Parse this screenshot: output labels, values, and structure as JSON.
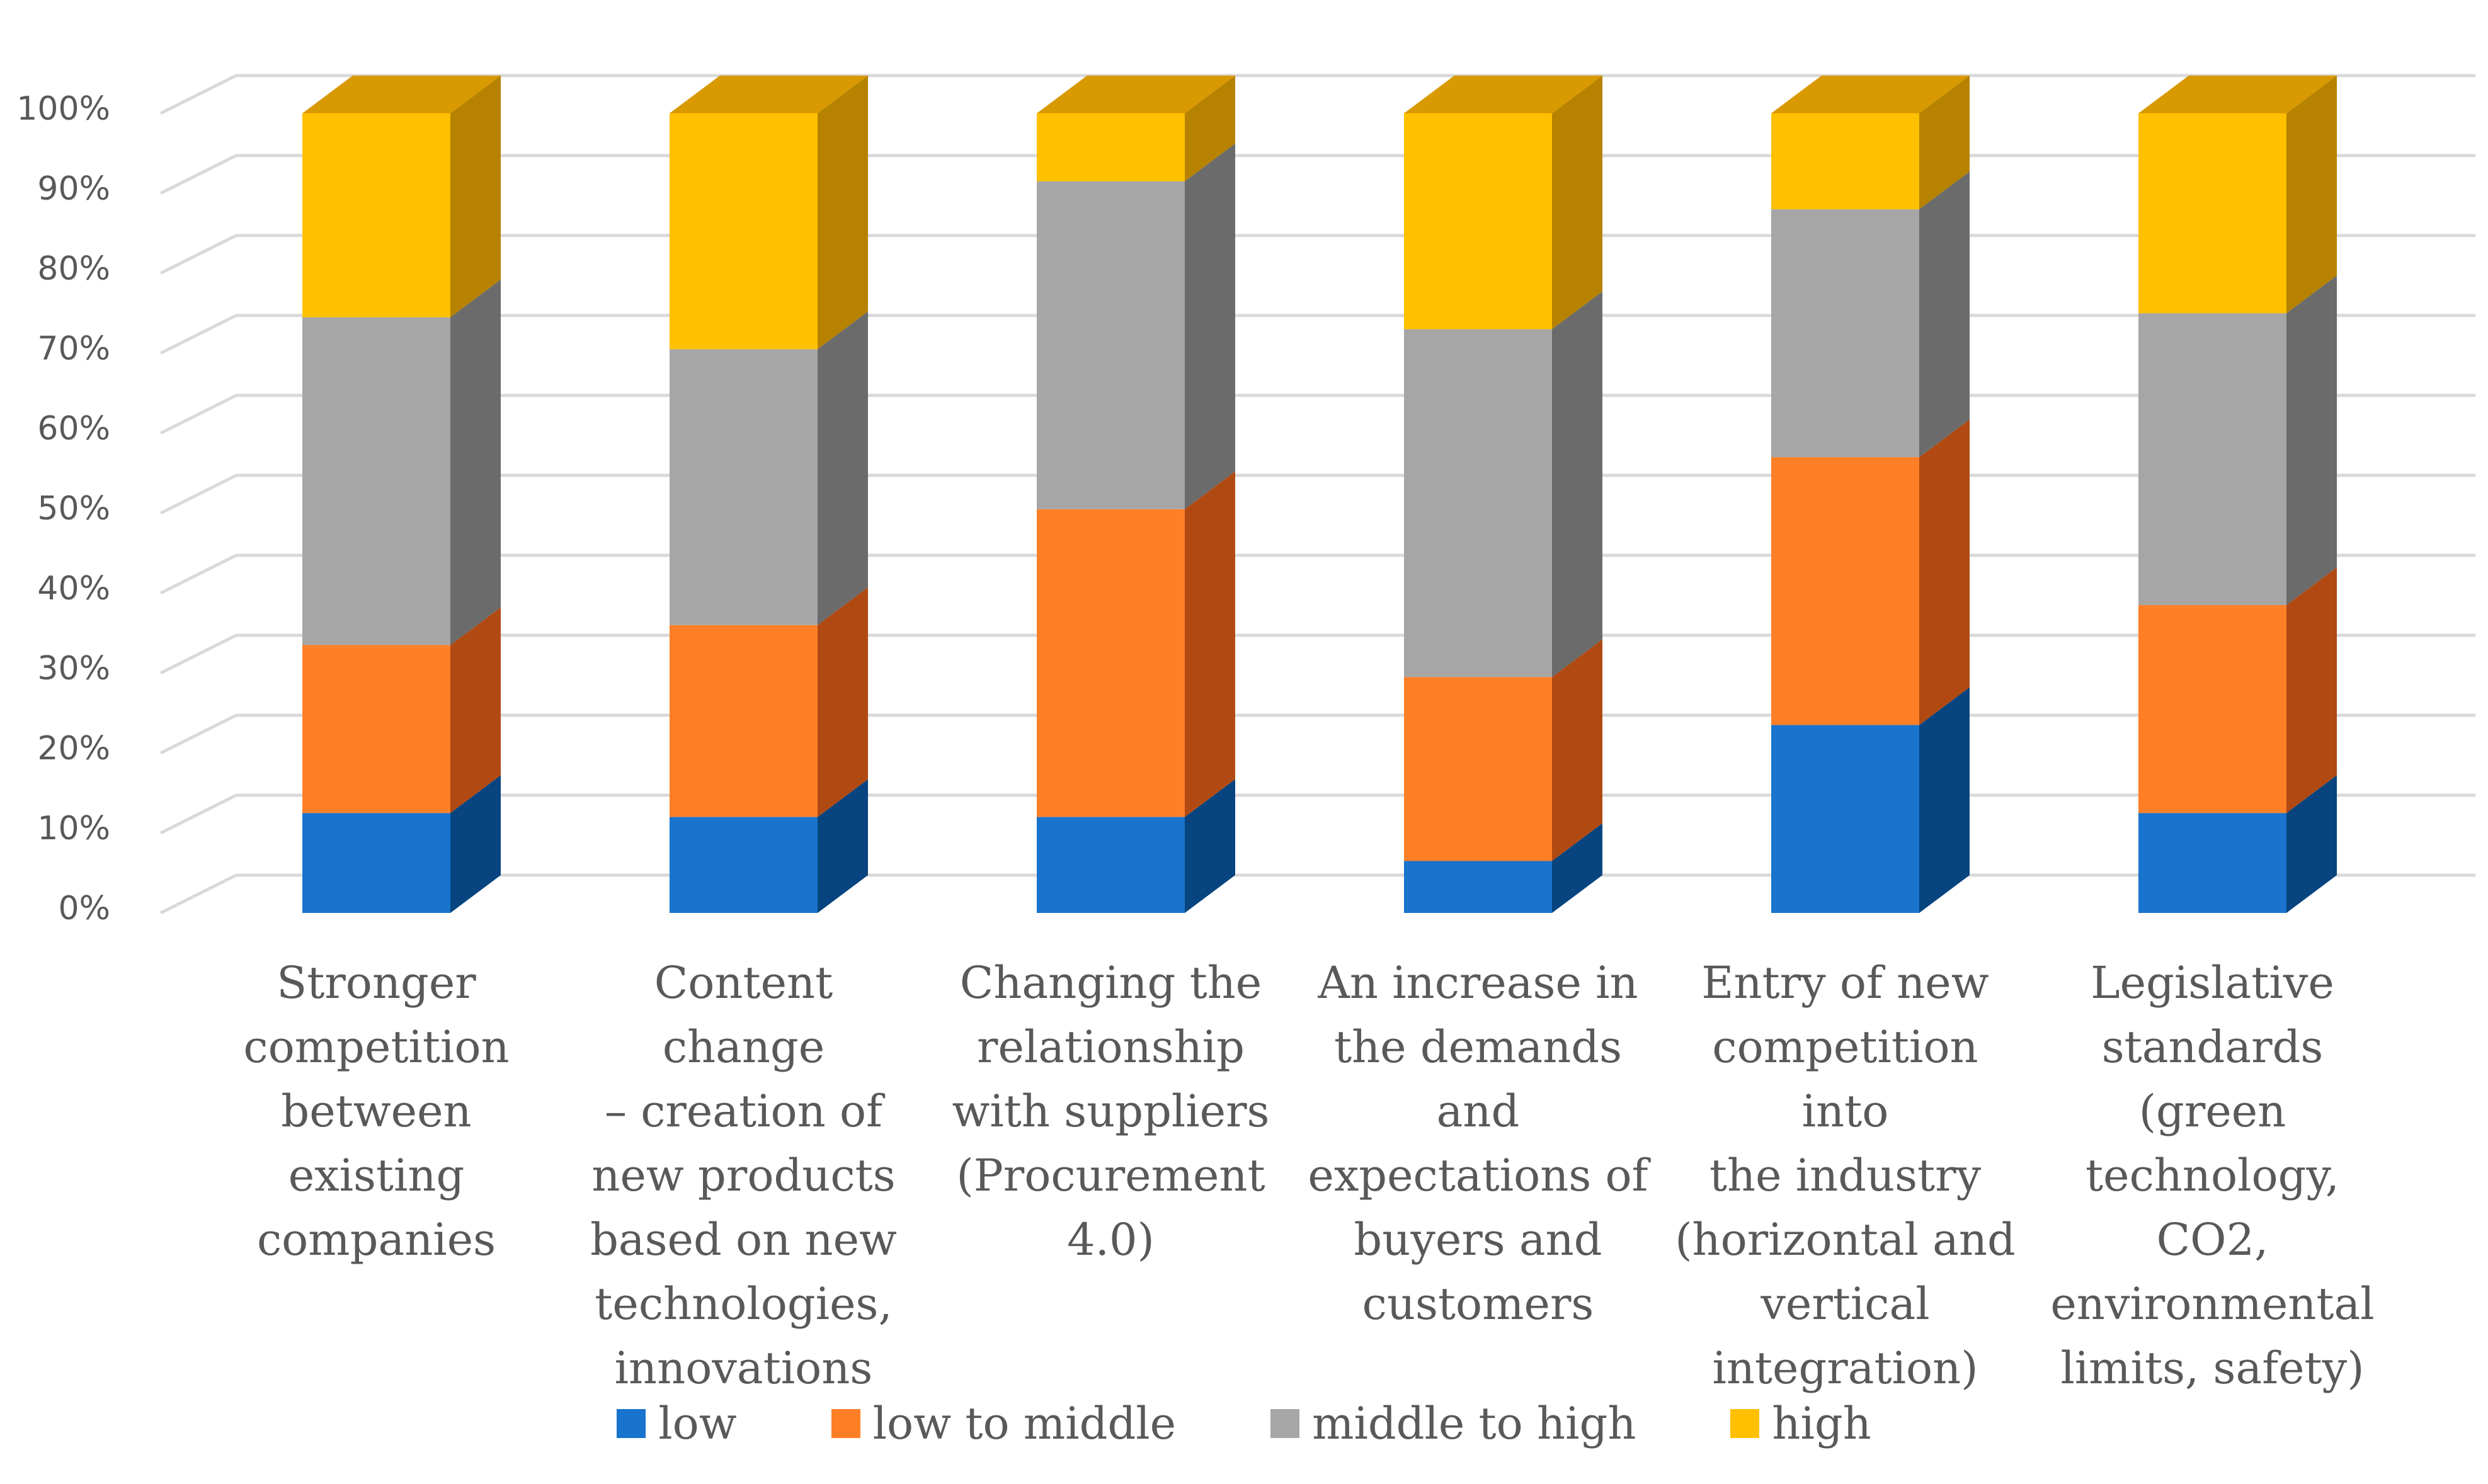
{
  "chart_data": {
    "type": "bar",
    "stacked": true,
    "three_d": true,
    "categories": [
      "Stronger competition between existing companies",
      "Content change – creation of new products based on new technologies, innovations",
      "Changing the relationship with suppliers (Procurement 4.0)",
      "An increase in the demands and expectations of buyers and customers",
      "Entry of new competition into the industry (horizontal and vertical integration)",
      "Legislative standards (green technology, CO2, environmental limits, safety)"
    ],
    "category_lines": [
      [
        "Stronger",
        "competition",
        "between",
        "existing",
        "companies"
      ],
      [
        "Content change",
        "– creation of",
        "new products",
        "based on new",
        "technologies,",
        "innovations"
      ],
      [
        "Changing the",
        "relationship",
        "with suppliers",
        "(Procurement",
        "4.0)"
      ],
      [
        "An increase in",
        "the demands",
        "and",
        "expectations of",
        "buyers and",
        "customers"
      ],
      [
        "Entry of new",
        "competition into",
        "the industry",
        "(horizontal and",
        "vertical",
        "integration)"
      ],
      [
        "Legislative",
        "standards",
        "(green",
        "technology,",
        "CO2,",
        "environmental",
        "limits, safety)"
      ]
    ],
    "series": [
      {
        "name": "low",
        "values": [
          12.5,
          12,
          12,
          6.5,
          23.5,
          12.5
        ],
        "color": "#1874CD",
        "side": "#074480",
        "top": "#0F5DAA"
      },
      {
        "name": "low to middle",
        "values": [
          21,
          24,
          38.5,
          23,
          33.5,
          26
        ],
        "color": "#FF7F27",
        "side": "#B04A12",
        "top": "#D5621B"
      },
      {
        "name": "middle to high",
        "values": [
          41,
          34.5,
          41,
          43.5,
          31,
          36.5
        ],
        "color": "#A6A6A6",
        "side": "#6B6B6B",
        "top": "#8C8C8C"
      },
      {
        "name": "high",
        "values": [
          25.5,
          29.5,
          8.5,
          27,
          12,
          25
        ],
        "color": "#FFC000",
        "side": "#B68200",
        "top": "#D99900"
      }
    ],
    "y_ticks": [
      "0%",
      "10%",
      "20%",
      "30%",
      "40%",
      "50%",
      "60%",
      "70%",
      "80%",
      "90%",
      "100%"
    ],
    "ylim": [
      0,
      100
    ],
    "title": "",
    "xlabel": "",
    "ylabel": "",
    "grid": true,
    "legend_position": "bottom"
  }
}
